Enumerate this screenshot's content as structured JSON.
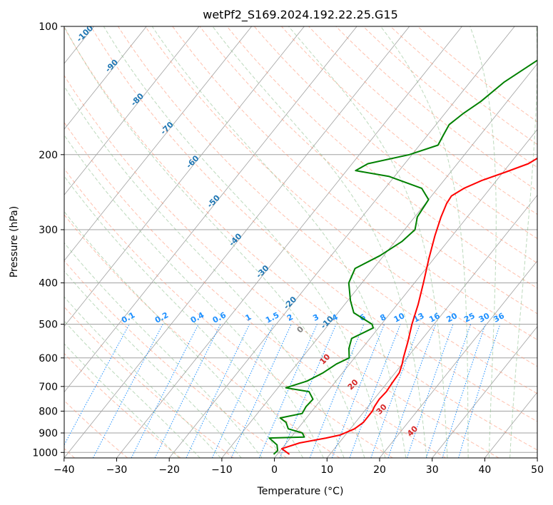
{
  "chart_data": {
    "type": "line",
    "title": "wetPf2_S169.2024.192.22.25.G15",
    "xlabel": "Temperature (°C)",
    "ylabel": "Pressure (hPa)",
    "xlim": [
      -40,
      50
    ],
    "ylim": [
      1030,
      100
    ],
    "y_scale": "log",
    "grid": true,
    "x_ticks": [
      -40,
      -30,
      -20,
      -10,
      0,
      10,
      20,
      30,
      40,
      50
    ],
    "x_tick_labels": [
      "−40",
      "−30",
      "−20",
      "−10",
      "0",
      "10",
      "20",
      "30",
      "40",
      "50"
    ],
    "y_ticks": [
      100,
      200,
      300,
      400,
      500,
      600,
      700,
      800,
      900,
      1000
    ],
    "y_tick_labels": [
      "100",
      "200",
      "300",
      "400",
      "500",
      "600",
      "700",
      "800",
      "900",
      "1000"
    ],
    "series": [
      {
        "color": "#ff0000",
        "points": [
          [
            1010,
            2.3
          ],
          [
            980,
            0.0
          ],
          [
            950,
            2.5
          ],
          [
            925,
            6.8
          ],
          [
            910,
            9.0
          ],
          [
            880,
            10.8
          ],
          [
            850,
            11.5
          ],
          [
            800,
            11.5
          ],
          [
            780,
            11.2
          ],
          [
            750,
            11.0
          ],
          [
            720,
            11.2
          ],
          [
            690,
            11.0
          ],
          [
            650,
            10.8
          ],
          [
            620,
            10.0
          ],
          [
            600,
            9.3
          ],
          [
            550,
            7.7
          ],
          [
            500,
            5.8
          ],
          [
            450,
            4.0
          ],
          [
            400,
            1.7
          ],
          [
            350,
            -1.0
          ],
          [
            310,
            -3.3
          ],
          [
            280,
            -5.0
          ],
          [
            260,
            -6.0
          ],
          [
            250,
            -6.2
          ],
          [
            240,
            -5.0
          ],
          [
            230,
            -2.8
          ],
          [
            220,
            0.4
          ],
          [
            210,
            3.5
          ],
          [
            200,
            5.0
          ],
          [
            180,
            6.5
          ],
          [
            160,
            8.5
          ],
          [
            140,
            11.0
          ],
          [
            130,
            13.0
          ],
          [
            115,
            15.0
          ],
          [
            100,
            18.0
          ]
        ]
      },
      {
        "color": "#008000",
        "points": [
          [
            1010,
            -0.7
          ],
          [
            990,
            -0.5
          ],
          [
            960,
            -1.5
          ],
          [
            925,
            -4.0
          ],
          [
            920,
            2.5
          ],
          [
            900,
            1.5
          ],
          [
            880,
            -1.8
          ],
          [
            850,
            -3.2
          ],
          [
            830,
            -5.0
          ],
          [
            810,
            -1.5
          ],
          [
            780,
            -1.8
          ],
          [
            750,
            -1.6
          ],
          [
            720,
            -3.5
          ],
          [
            705,
            -8.5
          ],
          [
            680,
            -5.5
          ],
          [
            650,
            -3.7
          ],
          [
            620,
            -2.5
          ],
          [
            600,
            -1.0
          ],
          [
            570,
            -2.5
          ],
          [
            540,
            -3.5
          ],
          [
            510,
            -1.0
          ],
          [
            500,
            -1.8
          ],
          [
            470,
            -7.0
          ],
          [
            440,
            -9.5
          ],
          [
            400,
            -12.5
          ],
          [
            370,
            -13.5
          ],
          [
            345,
            -10.7
          ],
          [
            320,
            -8.7
          ],
          [
            300,
            -8.0
          ],
          [
            280,
            -9.5
          ],
          [
            255,
            -10.0
          ],
          [
            240,
            -13.0
          ],
          [
            225,
            -21.0
          ],
          [
            218,
            -28.3
          ],
          [
            210,
            -27.0
          ],
          [
            200,
            -20.5
          ],
          [
            190,
            -16.5
          ],
          [
            180,
            -17.0
          ],
          [
            170,
            -17.5
          ],
          [
            160,
            -16.5
          ],
          [
            150,
            -15.0
          ],
          [
            135,
            -13.5
          ],
          [
            120,
            -10.5
          ],
          [
            100,
            -4.0
          ]
        ]
      }
    ],
    "mixing_ratio_labels": [
      "0.1",
      "0.2",
      "0.4",
      "0.6",
      "1",
      "1.5",
      "2",
      "3",
      "4",
      "6",
      "8",
      "10",
      "13",
      "16",
      "20",
      "25",
      "30",
      "36"
    ],
    "dry_adiabat_labels": [
      "-100",
      "-90",
      "-80",
      "-70",
      "-60",
      "-50",
      "-40",
      "-30",
      "-20",
      "-10"
    ],
    "moist_adiabat_labels": [
      "0",
      "10",
      "20",
      "30",
      "40"
    ],
    "colors": {
      "temperature": "#ff0000",
      "dewpoint": "#008000",
      "dry_adiabat_label": "#1f77b4",
      "mixing_ratio": "#1e90ff",
      "moist_label": "#d62728",
      "zero_label": "#808080",
      "dry_adiabat": "#ff8c69",
      "moist_adiabat": "#90c090",
      "isotherm": "#a0a0a0",
      "isobar": "#a0a0a0"
    }
  }
}
